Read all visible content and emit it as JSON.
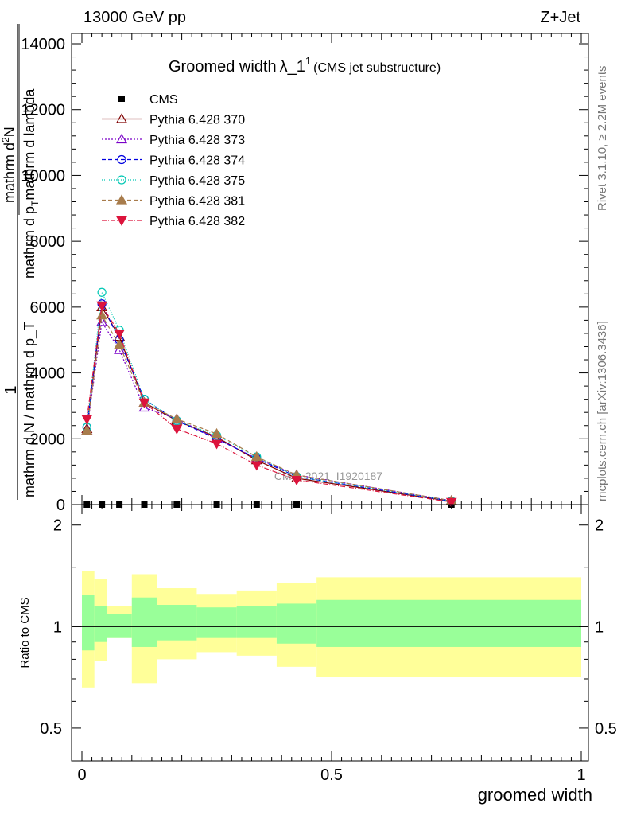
{
  "header": {
    "left": "13000 GeV pp",
    "right": "Z+Jet"
  },
  "side": {
    "rivet": "Rivet 3.1.10, ≥ 2.2M events",
    "mcplots": "mcplots.cern.ch [arXiv:1306.3436]"
  },
  "chart_data": [
    {
      "type": "line",
      "title": "Groomed width",
      "title_symbol": "λ_1",
      "title_superscript": "1",
      "subtitle": "(CMS jet substructure)",
      "watermark": "CMS_2021_I1920187",
      "ylabel_numerator": "1",
      "ylabel_denominator": "mathrm d N / mathrm d p_T",
      "ylabel_tail": "mathrm d",
      "ylabel_tail_sub": "T",
      "ylabel_tail_end": "mathrm d p",
      "ylabel_frac_numerator": "mathrm d",
      "ylabel_frac_numerator_sup": "2",
      "ylabel_frac_numerator_end": "N",
      "ylabel_frac_denominator": "mathrm d p",
      "ylabel_frac_denominator_sub": "T",
      "ylabel_frac_denominator_end": "mathrm d lambda",
      "ylim": [
        0,
        14000
      ],
      "xlim": [
        0,
        1
      ],
      "y_ticks": [
        "0",
        "2000",
        "4000",
        "6000",
        "8000",
        "10000",
        "12000",
        "14000"
      ],
      "legend_position": "top-left",
      "x": [
        0.01,
        0.04,
        0.075,
        0.125,
        0.19,
        0.27,
        0.35,
        0.43,
        0.74
      ],
      "series": [
        {
          "name": "CMS",
          "color": "#000000",
          "marker": "square",
          "dash": "",
          "values": [
            0,
            0,
            0,
            0,
            0,
            0,
            0,
            0,
            0
          ]
        },
        {
          "name": "Pythia 6.428 370",
          "color": "#7f0000",
          "marker": "triangle-open",
          "dash": "",
          "values": [
            2300,
            6000,
            5100,
            3100,
            2550,
            2050,
            1350,
            800,
            100
          ]
        },
        {
          "name": "Pythia 6.428 373",
          "color": "#7a00c8",
          "marker": "triangle-open",
          "dash": "2,2",
          "values": [
            2250,
            5550,
            4700,
            2950,
            2600,
            2000,
            1400,
            900,
            120
          ]
        },
        {
          "name": "Pythia 6.428 374",
          "color": "#0000e0",
          "marker": "circle-open",
          "dash": "5,3",
          "values": [
            2350,
            6100,
            5000,
            3200,
            2550,
            2000,
            1400,
            850,
            100
          ]
        },
        {
          "name": "Pythia 6.428 375",
          "color": "#00c8b4",
          "marker": "circle-open",
          "dash": "1,2",
          "values": [
            2350,
            6450,
            5300,
            3200,
            2550,
            2100,
            1450,
            850,
            110
          ]
        },
        {
          "name": "Pythia 6.428 381",
          "color": "#a87c4c",
          "marker": "triangle-filled",
          "dash": "5,3",
          "values": [
            2250,
            5750,
            4850,
            3100,
            2600,
            2150,
            1450,
            900,
            120
          ]
        },
        {
          "name": "Pythia 6.428 382",
          "color": "#dc143c",
          "marker": "triangle-down-filled",
          "dash": "6,2,1,2",
          "values": [
            2600,
            6050,
            5200,
            3100,
            2300,
            1850,
            1200,
            750,
            80
          ]
        }
      ]
    },
    {
      "type": "area",
      "ylabel": "Ratio to CMS",
      "xlabel": "groomed width",
      "xlim": [
        0,
        1
      ],
      "ylim": [
        0.4,
        2.3
      ],
      "y_scale": "log",
      "x_ticks": [
        "0",
        "0.5",
        "1"
      ],
      "y_ticks": [
        "0.5",
        "1",
        "2"
      ],
      "reference": 1,
      "bins": [
        {
          "x0": 0.0,
          "x1": 0.025,
          "inner": [
            0.85,
            1.24
          ],
          "outer": [
            0.66,
            1.46
          ]
        },
        {
          "x0": 0.025,
          "x1": 0.05,
          "inner": [
            0.9,
            1.15
          ],
          "outer": [
            0.79,
            1.38
          ]
        },
        {
          "x0": 0.05,
          "x1": 0.1,
          "inner": [
            0.93,
            1.09
          ],
          "outer": [
            0.93,
            1.15
          ]
        },
        {
          "x0": 0.1,
          "x1": 0.15,
          "inner": [
            0.87,
            1.22
          ],
          "outer": [
            0.68,
            1.43
          ]
        },
        {
          "x0": 0.15,
          "x1": 0.23,
          "inner": [
            0.91,
            1.16
          ],
          "outer": [
            0.8,
            1.3
          ]
        },
        {
          "x0": 0.23,
          "x1": 0.31,
          "inner": [
            0.93,
            1.14
          ],
          "outer": [
            0.84,
            1.25
          ]
        },
        {
          "x0": 0.31,
          "x1": 0.39,
          "inner": [
            0.93,
            1.15
          ],
          "outer": [
            0.82,
            1.28
          ]
        },
        {
          "x0": 0.39,
          "x1": 0.47,
          "inner": [
            0.89,
            1.17
          ],
          "outer": [
            0.76,
            1.35
          ]
        },
        {
          "x0": 0.47,
          "x1": 1.0,
          "inner": [
            0.87,
            1.2
          ],
          "outer": [
            0.71,
            1.4
          ]
        }
      ],
      "band_inner_color": "#99ff99",
      "band_outer_color": "#ffff99"
    }
  ]
}
